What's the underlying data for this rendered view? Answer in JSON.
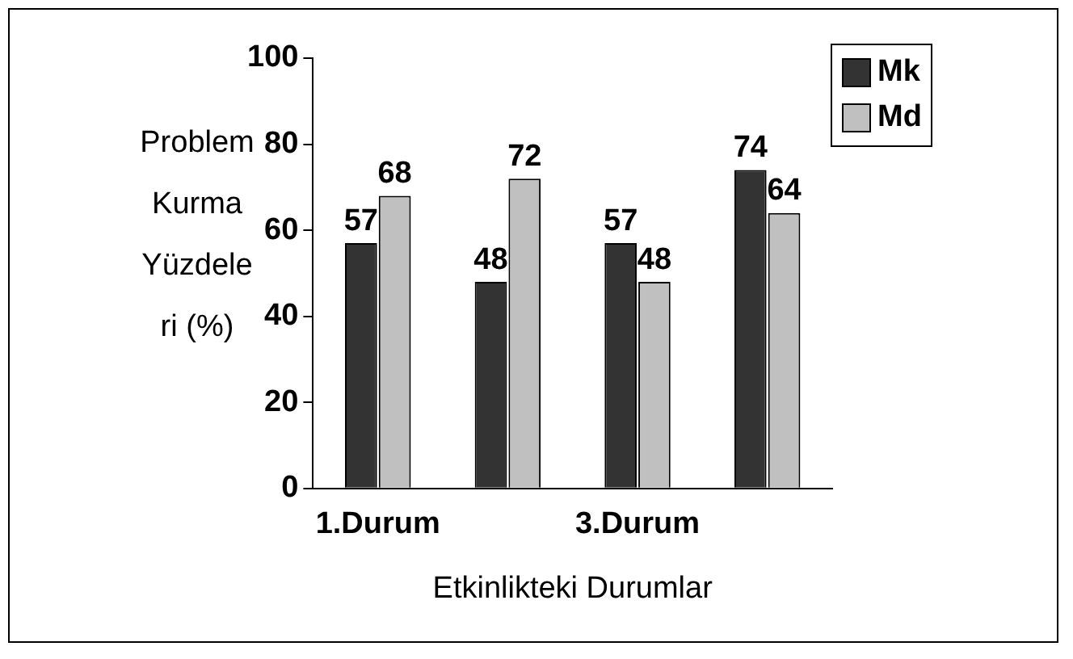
{
  "chart_data": {
    "type": "bar",
    "xlabel": "Etkinlikteki Durumlar",
    "ylabel": "Problem Kurma Yüzdele ri (%)",
    "categories": [
      "1.Durum",
      null,
      "3.Durum",
      null
    ],
    "series": [
      {
        "name": "Mk",
        "color": "#333333",
        "values": [
          57,
          48,
          57,
          74
        ]
      },
      {
        "name": "Md",
        "color": "#c0c0c0",
        "values": [
          68,
          72,
          48,
          64
        ]
      }
    ],
    "ylim": [
      0,
      100
    ],
    "yticks": [
      0,
      20,
      40,
      60,
      80,
      100
    ],
    "grid": false,
    "legend": "top right",
    "data_labels": true
  }
}
